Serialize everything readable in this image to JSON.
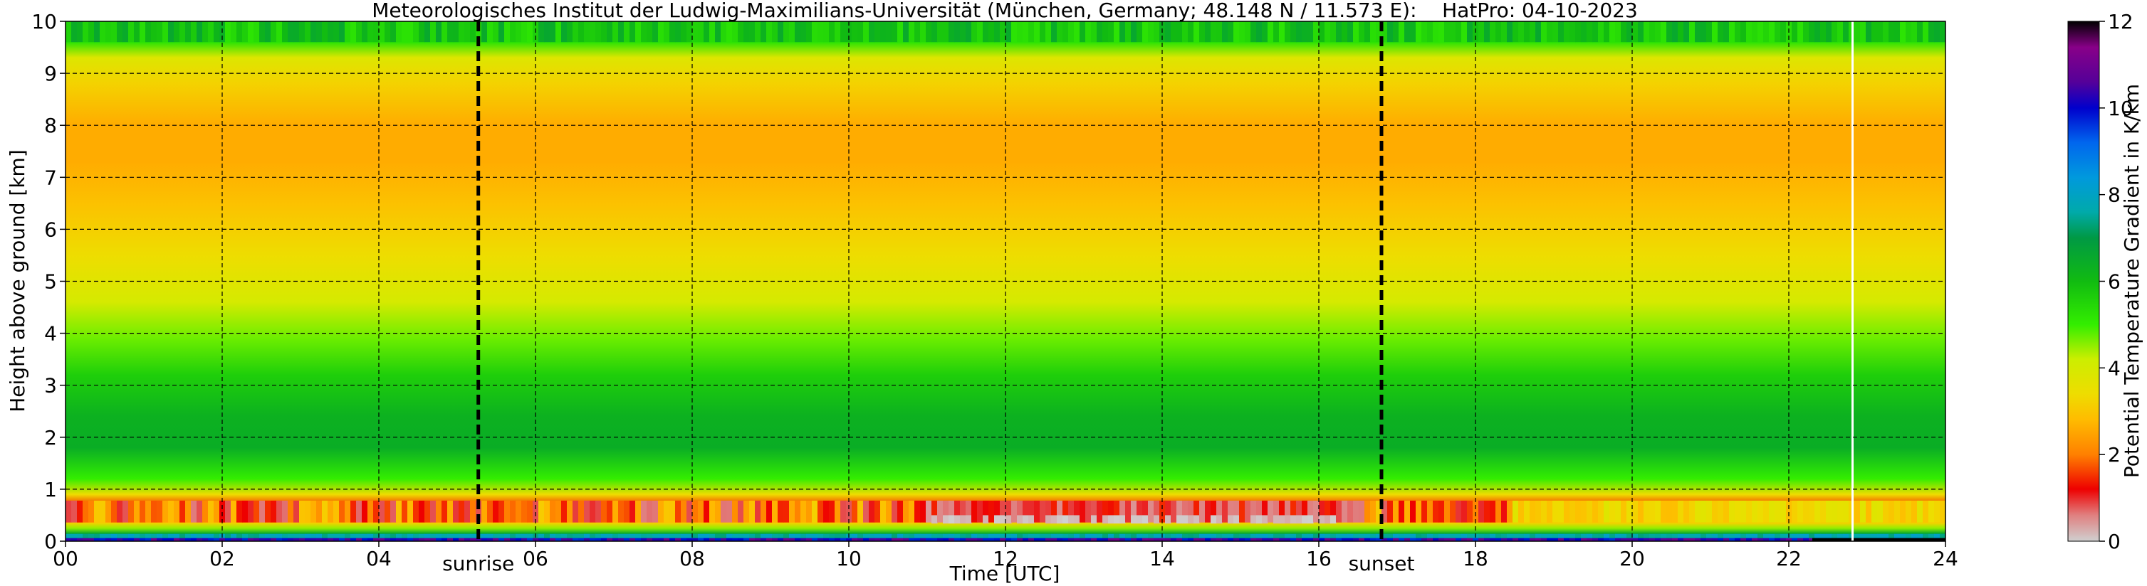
{
  "chart_data": {
    "type": "heatmap",
    "title": "Meteorologisches Institut der Ludwig-Maximilians-Universität (München, Germany; 48.148 N / 11.573 E):    HatPro: 04-10-2023",
    "xlabel": "Time [UTC]",
    "ylabel": "Height above ground [km]",
    "xlim": [
      0,
      24
    ],
    "ylim": [
      0,
      10
    ],
    "x_ticks": [
      0,
      2,
      4,
      6,
      8,
      10,
      12,
      14,
      16,
      18,
      20,
      22,
      24
    ],
    "x_tick_labels": [
      "00",
      "02",
      "04",
      "06",
      "08",
      "10",
      "12",
      "14",
      "16",
      "18",
      "20",
      "22",
      "24"
    ],
    "y_ticks": [
      0,
      1,
      2,
      3,
      4,
      5,
      6,
      7,
      8,
      9,
      10
    ],
    "y_tick_labels": [
      "0",
      "1",
      "2",
      "3",
      "4",
      "5",
      "6",
      "7",
      "8",
      "9",
      "10"
    ],
    "grid": true,
    "markers": [
      {
        "label": "sunrise",
        "x": 5.27
      },
      {
        "label": "sunset",
        "x": 16.8
      }
    ],
    "colorbar": {
      "label": "Potential Temperature Gradient in K/km",
      "range": [
        0,
        12
      ],
      "ticks": [
        0,
        2,
        4,
        6,
        8,
        10,
        12
      ],
      "tick_labels": [
        "0",
        "2",
        "4",
        "6",
        "8",
        "10",
        "12"
      ],
      "stops": [
        {
          "v": 0,
          "color": "#d0d0d0"
        },
        {
          "v": 0.6,
          "color": "#e08080"
        },
        {
          "v": 1.2,
          "color": "#ee0000"
        },
        {
          "v": 2.0,
          "color": "#ff8000"
        },
        {
          "v": 2.8,
          "color": "#ffbb00"
        },
        {
          "v": 3.4,
          "color": "#eedd00"
        },
        {
          "v": 4.2,
          "color": "#ccee00"
        },
        {
          "v": 5.0,
          "color": "#33ee00"
        },
        {
          "v": 6.0,
          "color": "#11bb11"
        },
        {
          "v": 7.0,
          "color": "#009944"
        },
        {
          "v": 7.6,
          "color": "#00aaaa"
        },
        {
          "v": 8.4,
          "color": "#0099dd"
        },
        {
          "v": 9.2,
          "color": "#0066ee"
        },
        {
          "v": 10.0,
          "color": "#0000cc"
        },
        {
          "v": 10.6,
          "color": "#550099"
        },
        {
          "v": 11.4,
          "color": "#880088"
        },
        {
          "v": 12,
          "color": "#000000"
        }
      ]
    },
    "profile_km_vs_gradient": [
      {
        "h": 0.0,
        "v": 10.5
      },
      {
        "h": 0.05,
        "v": 9.5
      },
      {
        "h": 0.15,
        "v": 6.5
      },
      {
        "h": 0.25,
        "v": 4.5
      },
      {
        "h": 0.35,
        "v": 3.2
      },
      {
        "h": 0.5,
        "v": 1.3
      },
      {
        "h": 0.7,
        "v": 1.6
      },
      {
        "h": 0.9,
        "v": 3.4
      },
      {
        "h": 1.2,
        "v": 5.0
      },
      {
        "h": 1.8,
        "v": 6.4
      },
      {
        "h": 2.4,
        "v": 6.3
      },
      {
        "h": 3.2,
        "v": 5.6
      },
      {
        "h": 3.9,
        "v": 4.7
      },
      {
        "h": 4.6,
        "v": 4.0
      },
      {
        "h": 5.5,
        "v": 3.4
      },
      {
        "h": 6.5,
        "v": 2.9
      },
      {
        "h": 7.3,
        "v": 2.6
      },
      {
        "h": 8.0,
        "v": 2.6
      },
      {
        "h": 8.8,
        "v": 3.2
      },
      {
        "h": 9.3,
        "v": 3.8
      },
      {
        "h": 9.6,
        "v": 5.2
      },
      {
        "h": 9.8,
        "v": 5.6
      },
      {
        "h": 10.0,
        "v": 5.0
      }
    ]
  }
}
